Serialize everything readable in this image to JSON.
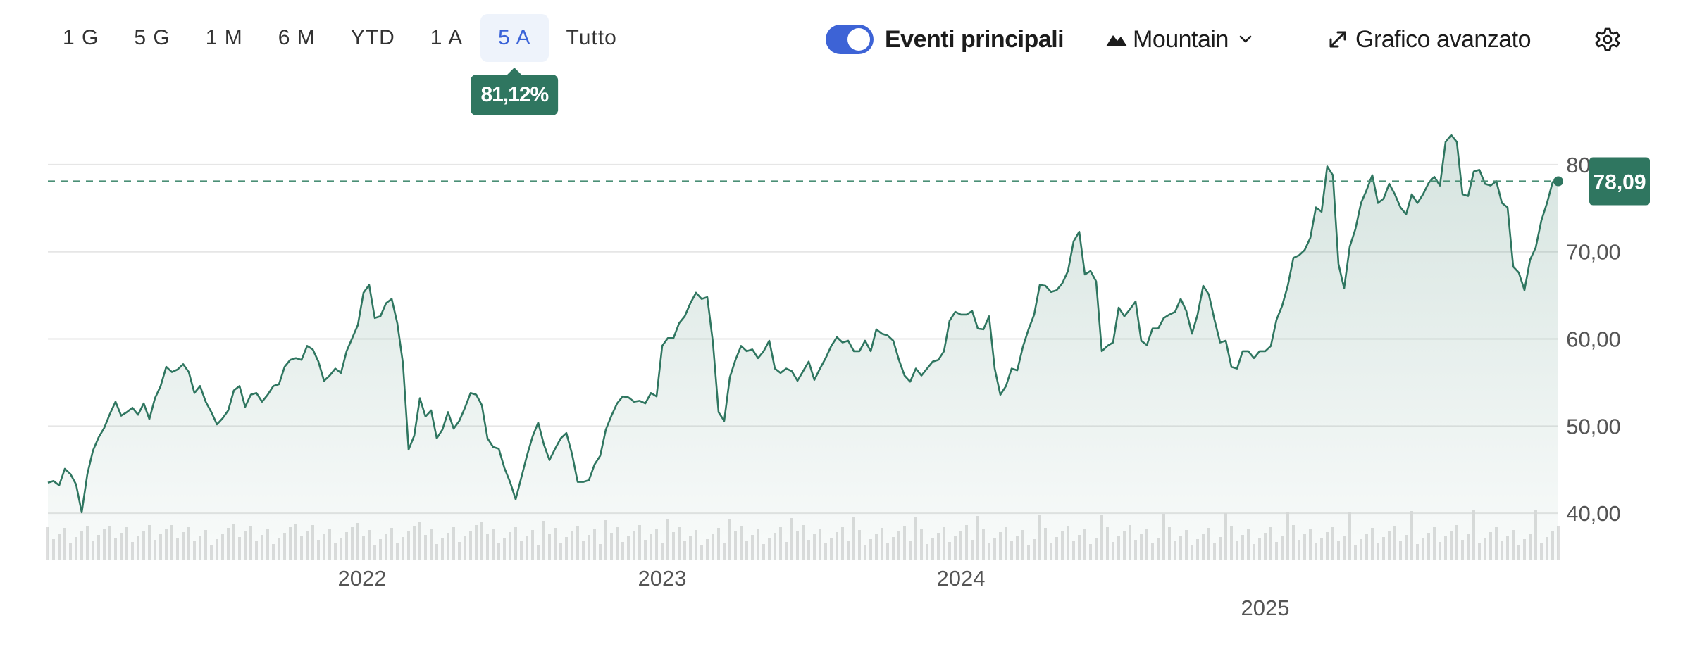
{
  "range_tabs": [
    "1 G",
    "5 G",
    "1 M",
    "6 M",
    "YTD",
    "1 A",
    "5 A",
    "Tutto"
  ],
  "active_range": "5 A",
  "change_badge": "81,12%",
  "controls": {
    "key_events_label": "Eventi principali",
    "key_events_on": true,
    "chart_style_label": "Mountain",
    "advanced_chart_label": "Grafico avanzato"
  },
  "icons": [
    "mountain-icon",
    "chevron-down-icon",
    "expand-icon",
    "gear-icon"
  ],
  "colors": {
    "line": "#2f7660",
    "accent": "#3d63d6",
    "badge": "#2f7660",
    "volume": "#dedede"
  },
  "chart_data": {
    "type": "area",
    "x_tick_labels": [
      "2022",
      "2023",
      "2024",
      "2025"
    ],
    "y_tick_labels": [
      "40,00",
      "50,00",
      "60,00",
      "70,00",
      "80,00"
    ],
    "ylim": [
      34.6,
      85
    ],
    "x_range": [
      "2020-10",
      "2025-12"
    ],
    "grid": true,
    "last_price": 78.09,
    "last_price_label": "78,09",
    "series": [
      {
        "values": [
          43.5,
          43.7,
          43.2,
          45.1,
          44.5,
          43.3,
          40.1,
          44.5,
          47.2,
          48.7,
          49.8,
          51.4,
          52.8,
          51.2,
          51.6,
          52.1,
          51.3,
          52.6,
          50.8,
          53.2,
          54.6,
          56.8,
          56.2,
          56.5,
          57.1,
          56.2,
          53.8,
          54.6,
          52.8,
          51.6,
          50.2,
          50.9,
          51.8,
          54.1,
          54.6,
          52.2,
          53.6,
          53.8,
          52.8,
          53.6,
          54.6,
          54.8,
          56.8,
          57.6,
          57.8,
          57.6,
          59.2,
          58.8,
          57.4,
          55.2,
          55.8,
          56.6,
          56.1,
          58.6,
          60.1,
          61.6,
          65.3,
          66.2,
          62.4,
          62.6,
          64.1,
          64.6,
          61.8,
          57.2,
          47.3,
          48.9,
          53.2,
          51.1,
          51.8,
          48.6,
          49.6,
          51.6,
          49.7,
          50.6,
          52.1,
          53.8,
          53.6,
          52.4,
          48.6,
          47.6,
          47.4,
          45.2,
          43.6,
          41.6,
          44.1,
          46.6,
          48.8,
          50.4,
          47.9,
          46.1,
          47.4,
          48.6,
          49.2,
          46.8,
          43.6,
          43.6,
          43.8,
          45.6,
          46.6,
          49.6,
          51.2,
          52.6,
          53.4,
          53.3,
          52.8,
          52.9,
          52.6,
          53.8,
          53.4,
          59.2,
          60.1,
          60.1,
          61.8,
          62.6,
          64.1,
          65.3,
          64.6,
          64.8,
          59.6,
          51.6,
          50.6,
          55.6,
          57.6,
          59.2,
          58.6,
          58.8,
          57.8,
          58.6,
          59.8,
          56.6,
          56.1,
          56.6,
          56.3,
          55.2,
          56.3,
          57.4,
          55.3,
          56.6,
          57.8,
          59.2,
          60.2,
          59.6,
          59.8,
          58.6,
          58.6,
          59.8,
          58.6,
          61.1,
          60.6,
          60.4,
          59.8,
          57.6,
          55.8,
          55.1,
          56.6,
          55.8,
          56.6,
          57.4,
          57.6,
          58.6,
          62.1,
          63.1,
          62.8,
          62.8,
          63.2,
          61.2,
          61.1,
          62.6,
          56.6,
          53.6,
          54.6,
          56.6,
          56.4,
          59.1,
          61.1,
          62.8,
          66.2,
          66.1,
          65.4,
          65.6,
          66.4,
          67.8,
          71.2,
          72.3,
          67.4,
          67.8,
          66.6,
          58.6,
          59.2,
          59.6,
          63.6,
          62.6,
          63.4,
          64.3,
          59.8,
          59.3,
          61.2,
          61.2,
          62.4,
          62.8,
          63.1,
          64.6,
          63.2,
          60.6,
          62.8,
          66.1,
          65.1,
          62.2,
          59.6,
          59.8,
          56.8,
          56.6,
          58.6,
          58.6,
          57.8,
          58.6,
          58.6,
          59.2,
          62.2,
          63.8,
          66.1,
          69.3,
          69.6,
          70.2,
          71.6,
          75.1,
          74.6,
          79.8,
          78.8,
          68.6,
          65.8,
          70.6,
          72.6,
          75.6,
          77.1,
          78.8,
          75.6,
          76.1,
          77.8,
          76.6,
          75.1,
          74.3,
          76.6,
          75.6,
          76.6,
          77.9,
          78.6,
          77.6,
          82.6,
          83.4,
          82.6,
          76.6,
          76.4,
          79.2,
          79.4,
          77.8,
          77.6,
          78.1,
          75.6,
          75.1,
          68.3,
          67.6,
          65.6,
          69.1,
          70.5,
          73.6,
          75.6,
          78.0,
          78.09
        ]
      }
    ]
  }
}
